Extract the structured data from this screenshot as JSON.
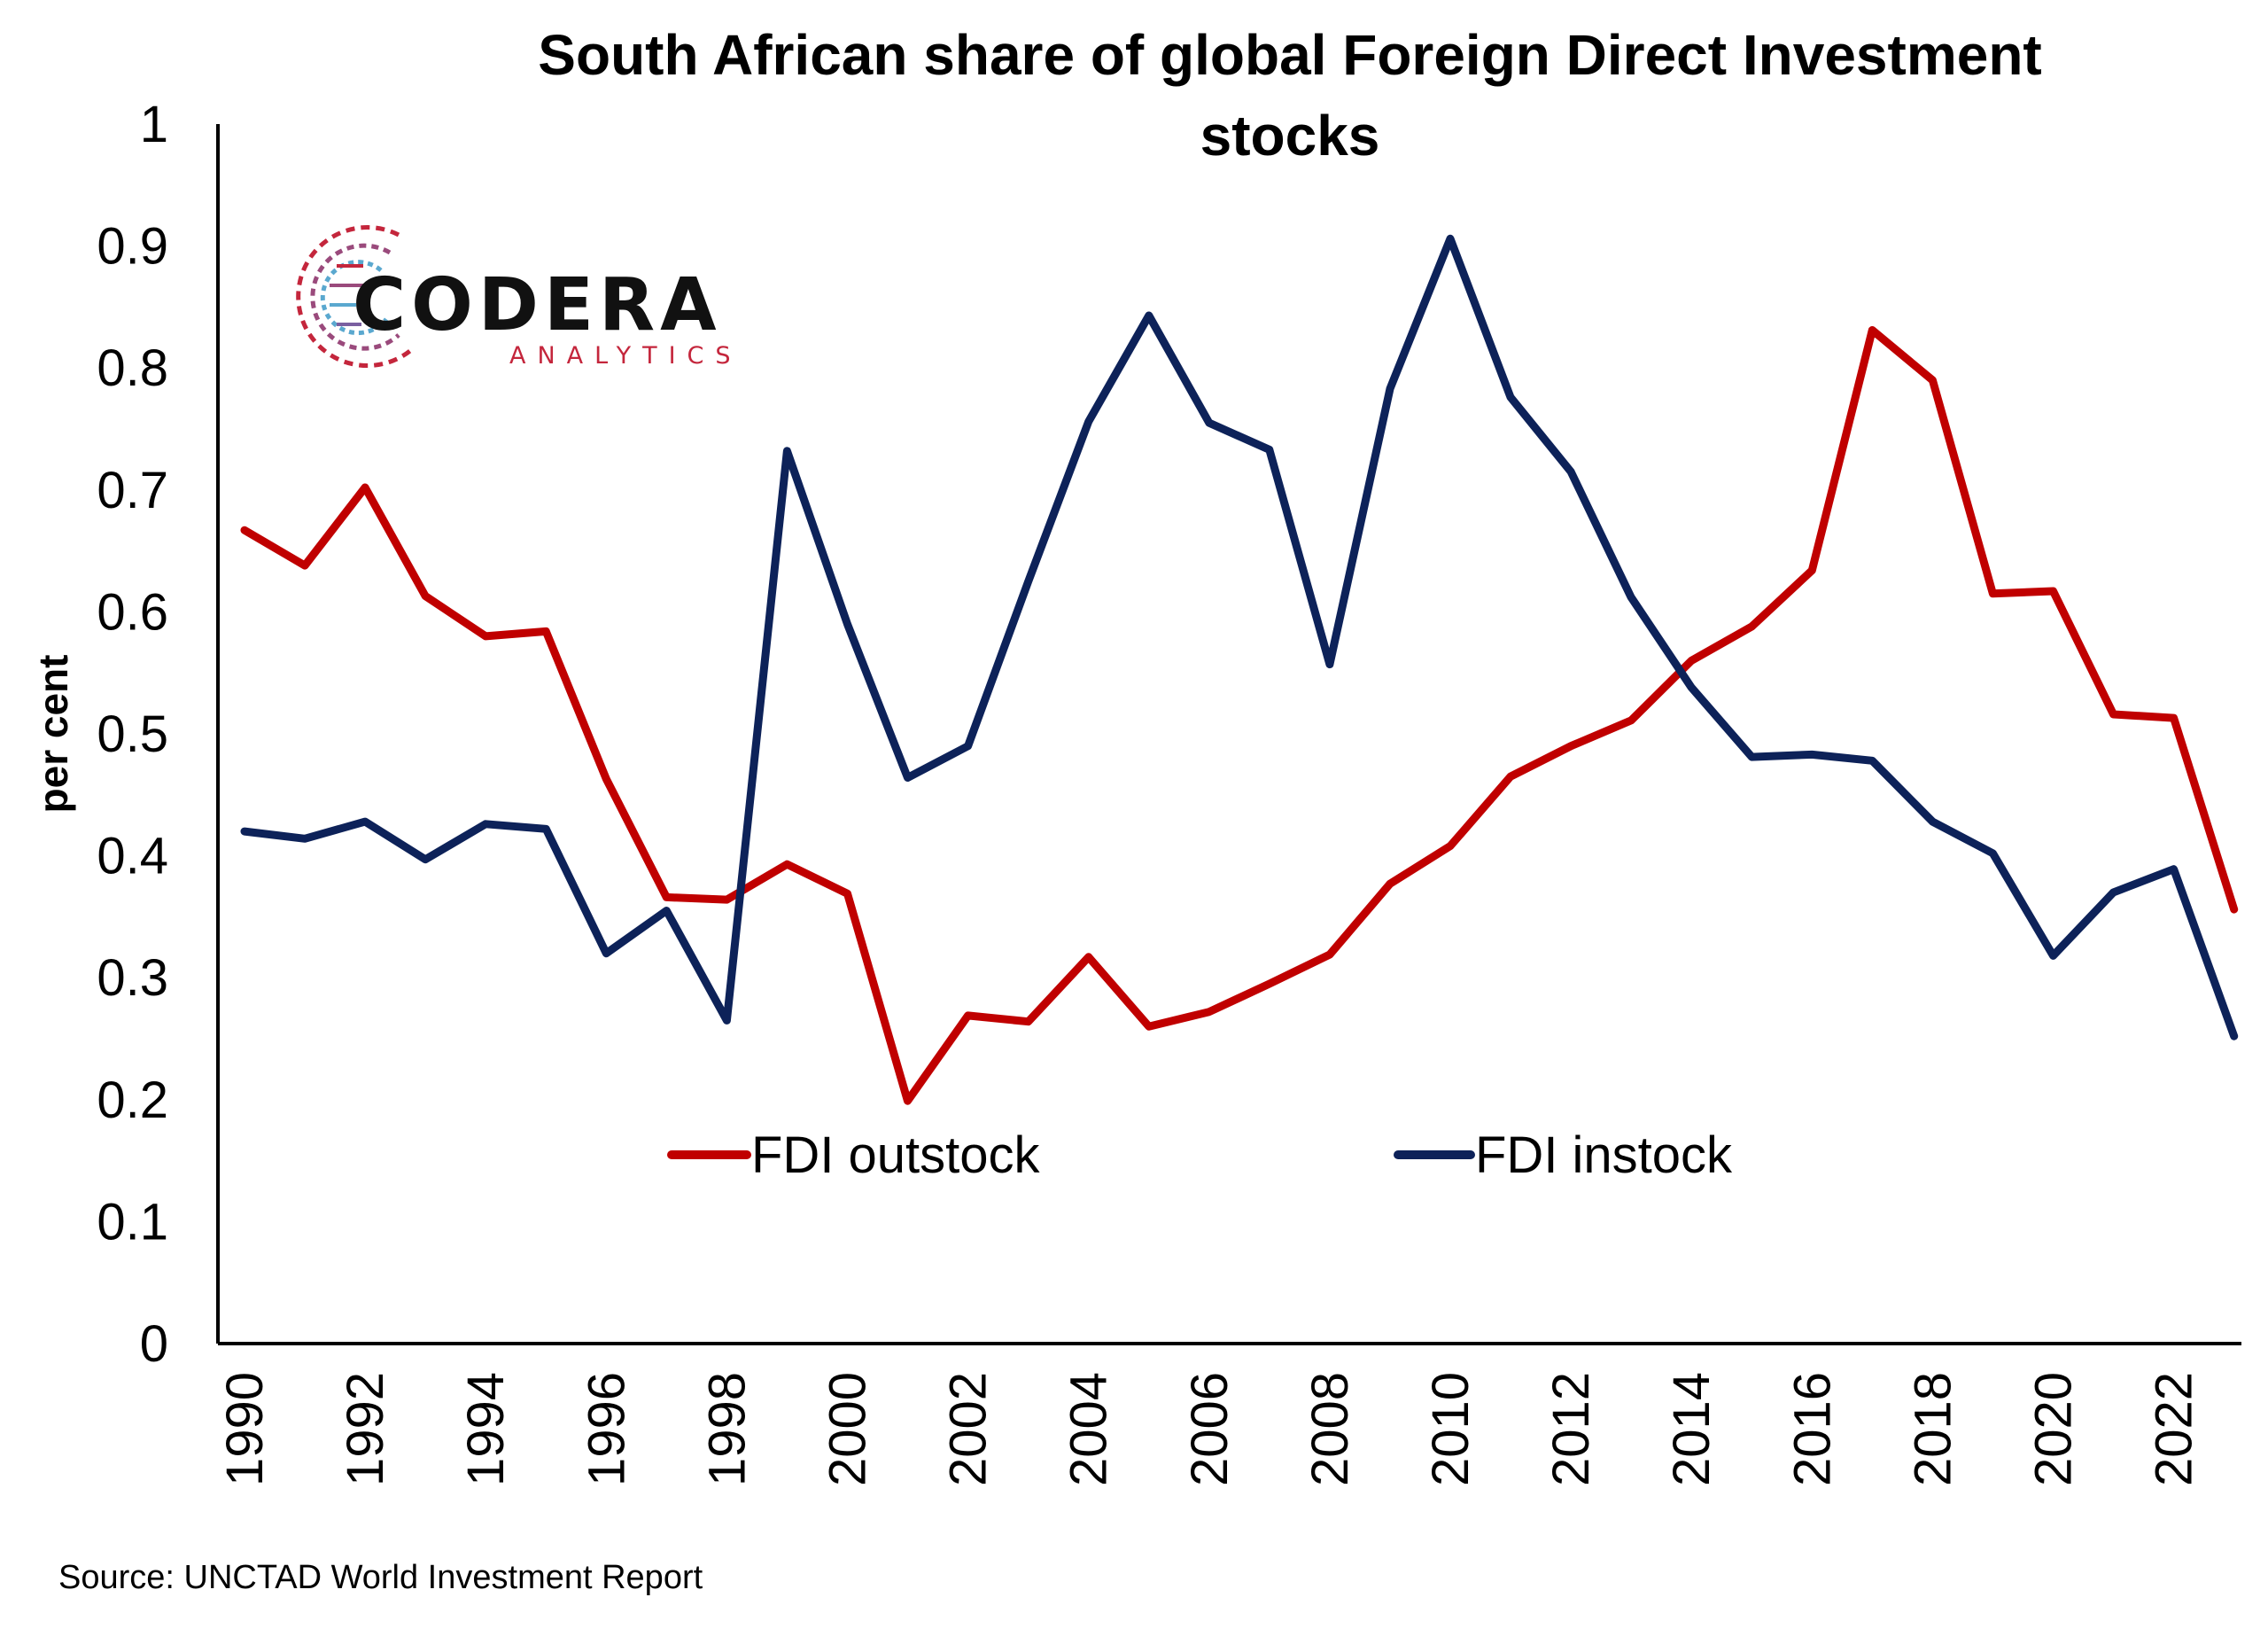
{
  "chart_data": {
    "type": "line",
    "title_lines": [
      "South African share of global Foreign Direct Investment",
      "stocks"
    ],
    "ylabel": "per cent",
    "xlabel": "",
    "ylim": [
      0,
      1
    ],
    "yticks": [
      "0",
      "0.1",
      "0.2",
      "0.3",
      "0.4",
      "0.5",
      "0.6",
      "0.7",
      "0.8",
      "0.9",
      "1"
    ],
    "x": [
      1990,
      1991,
      1992,
      1993,
      1994,
      1995,
      1996,
      1997,
      1998,
      1999,
      2000,
      2001,
      2002,
      2003,
      2004,
      2005,
      2006,
      2007,
      2008,
      2009,
      2010,
      2011,
      2012,
      2013,
      2014,
      2015,
      2016,
      2017,
      2018,
      2019,
      2020,
      2021,
      2022,
      2023
    ],
    "xtick_labels": [
      "1990",
      "1992",
      "1994",
      "1996",
      "1998",
      "2000",
      "2002",
      "2004",
      "2006",
      "2008",
      "2010",
      "2012",
      "2014",
      "2016",
      "2018",
      "2020",
      "2022"
    ],
    "series": [
      {
        "name": "FDI outstock",
        "color": "#c00000",
        "values": [
          0.667,
          0.638,
          0.702,
          0.613,
          0.58,
          0.584,
          0.463,
          0.366,
          0.364,
          0.393,
          0.369,
          0.199,
          0.269,
          0.264,
          0.317,
          0.26,
          0.272,
          0.295,
          0.319,
          0.377,
          0.408,
          0.465,
          0.49,
          0.511,
          0.56,
          0.588,
          0.634,
          0.831,
          0.79,
          0.615,
          0.617,
          0.516,
          0.513,
          0.356
        ]
      },
      {
        "name": "FDI instock",
        "color": "#0d2259",
        "values": [
          0.42,
          0.414,
          0.428,
          0.397,
          0.426,
          0.422,
          0.32,
          0.355,
          0.265,
          0.732,
          0.59,
          0.464,
          0.49,
          0.625,
          0.756,
          0.843,
          0.755,
          0.733,
          0.557,
          0.783,
          0.906,
          0.776,
          0.715,
          0.612,
          0.538,
          0.481,
          0.483,
          0.478,
          0.428,
          0.402,
          0.318,
          0.37,
          0.389,
          0.252
        ]
      }
    ],
    "legend_position": "center-bottom",
    "grid": false
  },
  "logo": {
    "main": "CODERA",
    "sub": "ANALYTICS"
  },
  "source": "Source: UNCTAD World Investment Report",
  "colors": {
    "axis": "#000000",
    "background": "#ffffff"
  }
}
